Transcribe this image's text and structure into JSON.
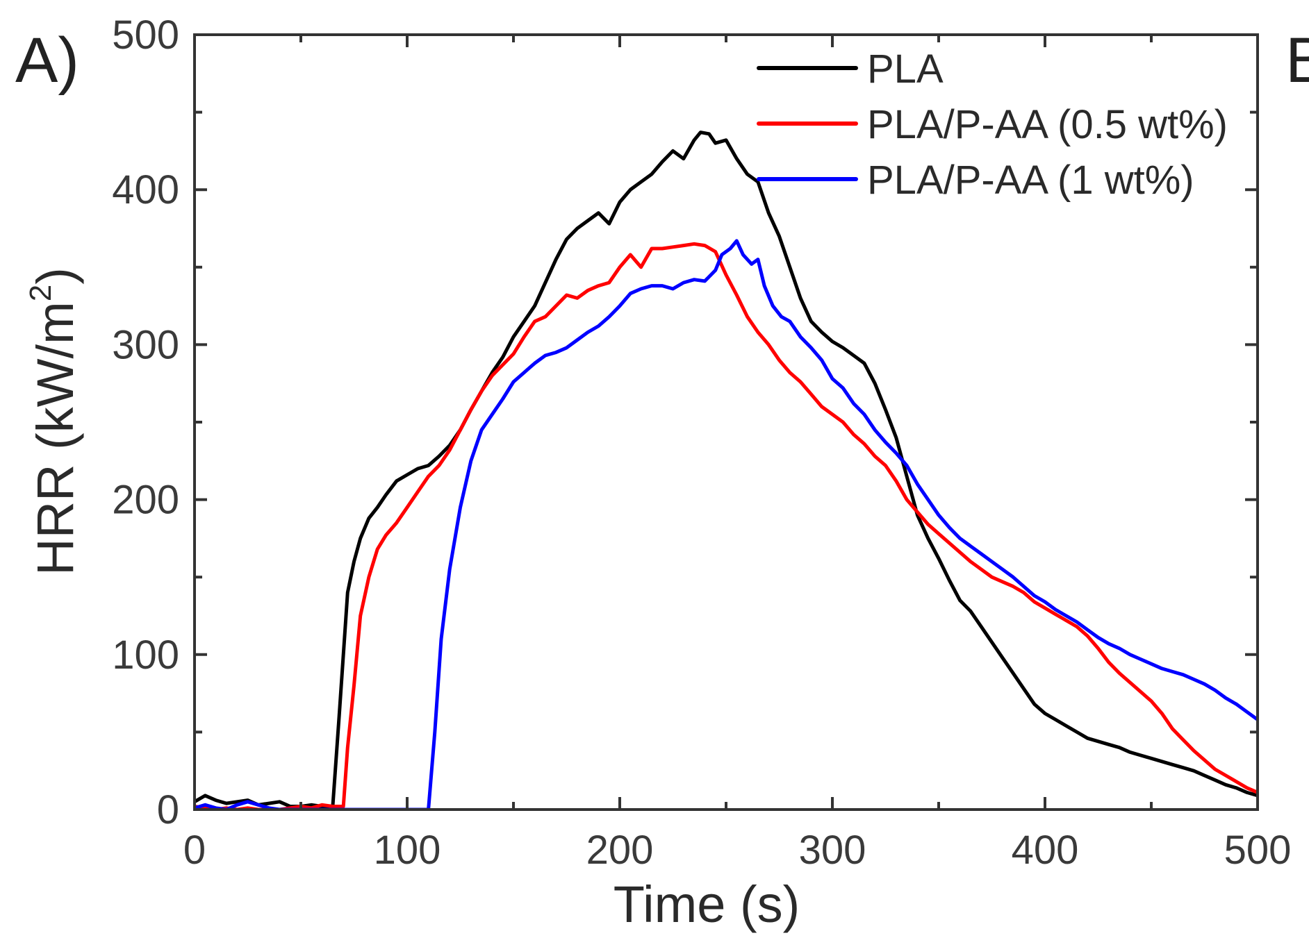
{
  "panel_label": "A)",
  "cut_label": "B",
  "chart_data": {
    "type": "line",
    "title": "",
    "xlabel": "Time (s)",
    "ylabel_main": "HRR (kW/m",
    "ylabel_sup": "2",
    "ylabel_close": ")",
    "xlim": [
      0,
      500
    ],
    "ylim": [
      0,
      500
    ],
    "xticks": [
      0,
      100,
      200,
      300,
      400,
      500
    ],
    "yticks": [
      0,
      100,
      200,
      300,
      400,
      500
    ],
    "xticklabels": [
      "0",
      "100",
      "200",
      "300",
      "400",
      "500"
    ],
    "yticklabels": [
      "0",
      "100",
      "200",
      "300",
      "400",
      "500"
    ],
    "legend_position": "top-right",
    "series": [
      {
        "name": "PLA",
        "color": "#000000",
        "points": [
          [
            0,
            5
          ],
          [
            5,
            9
          ],
          [
            10,
            6
          ],
          [
            15,
            4
          ],
          [
            20,
            5
          ],
          [
            25,
            6
          ],
          [
            30,
            3
          ],
          [
            35,
            4
          ],
          [
            40,
            5
          ],
          [
            45,
            2
          ],
          [
            50,
            2
          ],
          [
            55,
            3
          ],
          [
            60,
            2
          ],
          [
            65,
            2
          ],
          [
            68,
            60
          ],
          [
            70,
            100
          ],
          [
            72,
            140
          ],
          [
            75,
            160
          ],
          [
            78,
            175
          ],
          [
            82,
            188
          ],
          [
            86,
            195
          ],
          [
            90,
            203
          ],
          [
            95,
            212
          ],
          [
            100,
            216
          ],
          [
            105,
            220
          ],
          [
            110,
            222
          ],
          [
            115,
            228
          ],
          [
            120,
            235
          ],
          [
            125,
            245
          ],
          [
            130,
            258
          ],
          [
            135,
            270
          ],
          [
            140,
            282
          ],
          [
            145,
            292
          ],
          [
            150,
            305
          ],
          [
            155,
            315
          ],
          [
            160,
            325
          ],
          [
            165,
            340
          ],
          [
            170,
            355
          ],
          [
            175,
            368
          ],
          [
            180,
            375
          ],
          [
            185,
            380
          ],
          [
            190,
            385
          ],
          [
            195,
            378
          ],
          [
            200,
            392
          ],
          [
            205,
            400
          ],
          [
            210,
            405
          ],
          [
            215,
            410
          ],
          [
            220,
            418
          ],
          [
            225,
            425
          ],
          [
            230,
            420
          ],
          [
            235,
            432
          ],
          [
            238,
            437
          ],
          [
            242,
            436
          ],
          [
            245,
            430
          ],
          [
            250,
            432
          ],
          [
            255,
            420
          ],
          [
            260,
            410
          ],
          [
            265,
            405
          ],
          [
            270,
            385
          ],
          [
            275,
            370
          ],
          [
            280,
            350
          ],
          [
            285,
            330
          ],
          [
            290,
            315
          ],
          [
            295,
            308
          ],
          [
            300,
            302
          ],
          [
            305,
            298
          ],
          [
            310,
            293
          ],
          [
            315,
            288
          ],
          [
            320,
            275
          ],
          [
            325,
            258
          ],
          [
            330,
            240
          ],
          [
            335,
            215
          ],
          [
            340,
            190
          ],
          [
            345,
            175
          ],
          [
            350,
            162
          ],
          [
            355,
            148
          ],
          [
            360,
            135
          ],
          [
            365,
            128
          ],
          [
            370,
            118
          ],
          [
            375,
            108
          ],
          [
            380,
            98
          ],
          [
            385,
            88
          ],
          [
            390,
            78
          ],
          [
            395,
            68
          ],
          [
            400,
            62
          ],
          [
            405,
            58
          ],
          [
            410,
            54
          ],
          [
            415,
            50
          ],
          [
            420,
            46
          ],
          [
            425,
            44
          ],
          [
            430,
            42
          ],
          [
            435,
            40
          ],
          [
            440,
            37
          ],
          [
            445,
            35
          ],
          [
            450,
            33
          ],
          [
            455,
            31
          ],
          [
            460,
            29
          ],
          [
            465,
            27
          ],
          [
            470,
            25
          ],
          [
            475,
            22
          ],
          [
            480,
            19
          ],
          [
            485,
            16
          ],
          [
            490,
            14
          ],
          [
            495,
            11
          ],
          [
            500,
            9
          ]
        ]
      },
      {
        "name": "PLA/P-AA (0.5 wt%)",
        "color": "#ff0000",
        "points": [
          [
            0,
            2
          ],
          [
            5,
            1
          ],
          [
            10,
            0
          ],
          [
            15,
            1
          ],
          [
            20,
            0
          ],
          [
            25,
            1
          ],
          [
            30,
            0
          ],
          [
            35,
            0
          ],
          [
            40,
            0
          ],
          [
            45,
            1
          ],
          [
            50,
            2
          ],
          [
            55,
            1
          ],
          [
            60,
            3
          ],
          [
            65,
            2
          ],
          [
            70,
            2
          ],
          [
            72,
            40
          ],
          [
            75,
            80
          ],
          [
            78,
            125
          ],
          [
            82,
            150
          ],
          [
            86,
            168
          ],
          [
            90,
            177
          ],
          [
            95,
            185
          ],
          [
            100,
            195
          ],
          [
            105,
            205
          ],
          [
            110,
            215
          ],
          [
            115,
            222
          ],
          [
            120,
            232
          ],
          [
            125,
            245
          ],
          [
            130,
            258
          ],
          [
            135,
            270
          ],
          [
            140,
            280
          ],
          [
            145,
            287
          ],
          [
            150,
            294
          ],
          [
            155,
            305
          ],
          [
            160,
            315
          ],
          [
            165,
            318
          ],
          [
            170,
            325
          ],
          [
            175,
            332
          ],
          [
            180,
            330
          ],
          [
            185,
            335
          ],
          [
            190,
            338
          ],
          [
            195,
            340
          ],
          [
            200,
            350
          ],
          [
            205,
            358
          ],
          [
            210,
            350
          ],
          [
            215,
            362
          ],
          [
            220,
            362
          ],
          [
            225,
            363
          ],
          [
            230,
            364
          ],
          [
            235,
            365
          ],
          [
            240,
            364
          ],
          [
            245,
            360
          ],
          [
            250,
            345
          ],
          [
            255,
            332
          ],
          [
            260,
            318
          ],
          [
            265,
            308
          ],
          [
            270,
            300
          ],
          [
            275,
            290
          ],
          [
            280,
            282
          ],
          [
            285,
            276
          ],
          [
            290,
            268
          ],
          [
            295,
            260
          ],
          [
            300,
            255
          ],
          [
            305,
            250
          ],
          [
            310,
            242
          ],
          [
            315,
            236
          ],
          [
            320,
            228
          ],
          [
            325,
            222
          ],
          [
            330,
            212
          ],
          [
            335,
            200
          ],
          [
            340,
            192
          ],
          [
            345,
            184
          ],
          [
            350,
            178
          ],
          [
            355,
            172
          ],
          [
            360,
            166
          ],
          [
            365,
            160
          ],
          [
            370,
            155
          ],
          [
            375,
            150
          ],
          [
            380,
            147
          ],
          [
            385,
            144
          ],
          [
            390,
            140
          ],
          [
            395,
            134
          ],
          [
            400,
            130
          ],
          [
            405,
            126
          ],
          [
            410,
            122
          ],
          [
            415,
            118
          ],
          [
            420,
            112
          ],
          [
            425,
            104
          ],
          [
            430,
            95
          ],
          [
            435,
            88
          ],
          [
            440,
            82
          ],
          [
            445,
            76
          ],
          [
            450,
            70
          ],
          [
            455,
            62
          ],
          [
            460,
            52
          ],
          [
            465,
            45
          ],
          [
            470,
            38
          ],
          [
            475,
            32
          ],
          [
            480,
            26
          ],
          [
            485,
            22
          ],
          [
            490,
            18
          ],
          [
            495,
            14
          ],
          [
            500,
            11
          ]
        ]
      },
      {
        "name": "PLA/P-AA (1 wt%)",
        "color": "#0000ff",
        "points": [
          [
            0,
            1
          ],
          [
            5,
            3
          ],
          [
            10,
            1
          ],
          [
            15,
            0
          ],
          [
            20,
            3
          ],
          [
            25,
            5
          ],
          [
            30,
            3
          ],
          [
            35,
            1
          ],
          [
            40,
            0
          ],
          [
            45,
            0
          ],
          [
            50,
            0
          ],
          [
            55,
            0
          ],
          [
            60,
            0
          ],
          [
            70,
            0
          ],
          [
            80,
            0
          ],
          [
            90,
            0
          ],
          [
            100,
            0
          ],
          [
            108,
            0
          ],
          [
            110,
            0
          ],
          [
            113,
            50
          ],
          [
            116,
            110
          ],
          [
            120,
            155
          ],
          [
            125,
            195
          ],
          [
            130,
            225
          ],
          [
            135,
            245
          ],
          [
            140,
            255
          ],
          [
            145,
            265
          ],
          [
            150,
            276
          ],
          [
            155,
            282
          ],
          [
            160,
            288
          ],
          [
            165,
            293
          ],
          [
            170,
            295
          ],
          [
            175,
            298
          ],
          [
            180,
            303
          ],
          [
            185,
            308
          ],
          [
            190,
            312
          ],
          [
            195,
            318
          ],
          [
            200,
            325
          ],
          [
            205,
            333
          ],
          [
            210,
            336
          ],
          [
            215,
            338
          ],
          [
            220,
            338
          ],
          [
            225,
            336
          ],
          [
            230,
            340
          ],
          [
            235,
            342
          ],
          [
            240,
            341
          ],
          [
            245,
            348
          ],
          [
            248,
            358
          ],
          [
            252,
            362
          ],
          [
            255,
            367
          ],
          [
            258,
            358
          ],
          [
            262,
            352
          ],
          [
            265,
            355
          ],
          [
            268,
            338
          ],
          [
            272,
            325
          ],
          [
            276,
            318
          ],
          [
            280,
            315
          ],
          [
            285,
            305
          ],
          [
            290,
            298
          ],
          [
            295,
            290
          ],
          [
            300,
            278
          ],
          [
            305,
            272
          ],
          [
            310,
            262
          ],
          [
            315,
            255
          ],
          [
            320,
            245
          ],
          [
            325,
            237
          ],
          [
            330,
            230
          ],
          [
            335,
            222
          ],
          [
            340,
            210
          ],
          [
            345,
            200
          ],
          [
            350,
            190
          ],
          [
            355,
            182
          ],
          [
            360,
            175
          ],
          [
            365,
            170
          ],
          [
            370,
            165
          ],
          [
            375,
            160
          ],
          [
            380,
            155
          ],
          [
            385,
            150
          ],
          [
            390,
            144
          ],
          [
            395,
            138
          ],
          [
            400,
            134
          ],
          [
            405,
            129
          ],
          [
            410,
            125
          ],
          [
            415,
            121
          ],
          [
            420,
            116
          ],
          [
            425,
            111
          ],
          [
            430,
            107
          ],
          [
            435,
            104
          ],
          [
            440,
            100
          ],
          [
            445,
            97
          ],
          [
            450,
            94
          ],
          [
            455,
            91
          ],
          [
            460,
            89
          ],
          [
            465,
            87
          ],
          [
            470,
            84
          ],
          [
            475,
            81
          ],
          [
            480,
            77
          ],
          [
            485,
            72
          ],
          [
            490,
            68
          ],
          [
            495,
            63
          ],
          [
            500,
            58
          ]
        ]
      }
    ]
  }
}
